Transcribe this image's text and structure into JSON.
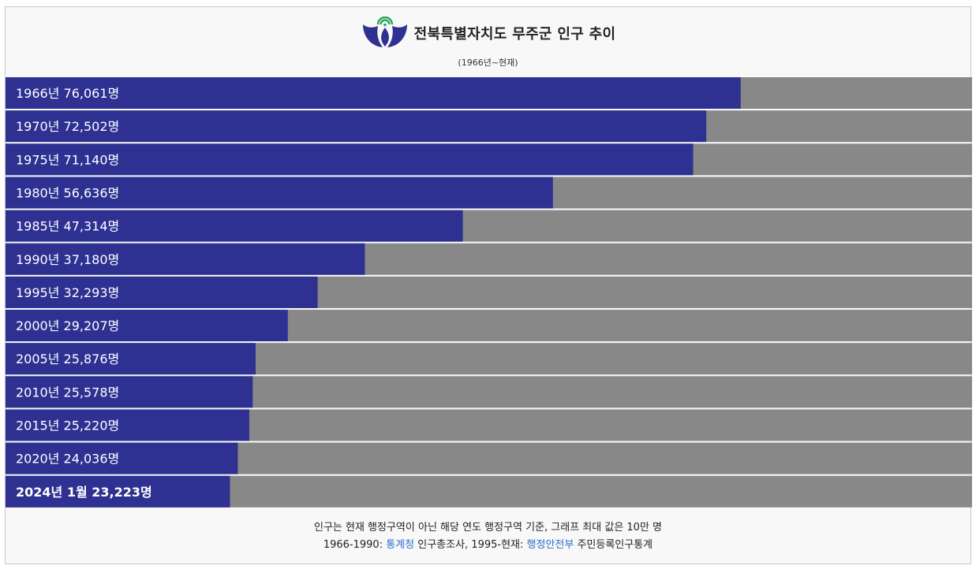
{
  "header": {
    "title": "전북특별자치도 무주군 인구 추이",
    "subtitle": "(1966년~현재)"
  },
  "chart_data": {
    "type": "bar",
    "orientation": "horizontal",
    "title": "전북특별자치도 무주군 인구 추이",
    "subtitle": "(1966년~현재)",
    "xlim": [
      0,
      100000
    ],
    "unit": "명",
    "colors": {
      "bar": "#2e3192",
      "track": "#888888",
      "label": "#ffffff"
    },
    "categories": [
      "1966년",
      "1970년",
      "1975년",
      "1980년",
      "1985년",
      "1990년",
      "1995년",
      "2000년",
      "2005년",
      "2010년",
      "2015년",
      "2020년",
      "2024년 1월"
    ],
    "values": [
      76061,
      72502,
      71140,
      56636,
      47314,
      37180,
      32293,
      29207,
      25876,
      25578,
      25220,
      24036,
      23223
    ],
    "labels": [
      "1966년 76,061명",
      "1970년 72,502명",
      "1975년 71,140명",
      "1980년 56,636명",
      "1985년 47,314명",
      "1990년 37,180명",
      "1995년 32,293명",
      "2000년 29,207명",
      "2005년 25,876명",
      "2010년 25,578명",
      "2015년 25,220명",
      "2020년 24,036명",
      "2024년 1월 23,223명"
    ],
    "bold_last": true
  },
  "footer": {
    "note": "인구는 현재 행정구역이 아닌 해당 연도 행정구역 기준, 그래프 최대 값은 10만 명",
    "source_prefix": "1966-1990: ",
    "source_link1": "통계청",
    "source_middle": " 인구총조사, 1995-현재: ",
    "source_link2": "행정안전부",
    "source_suffix": " 주민등록인구통계"
  }
}
